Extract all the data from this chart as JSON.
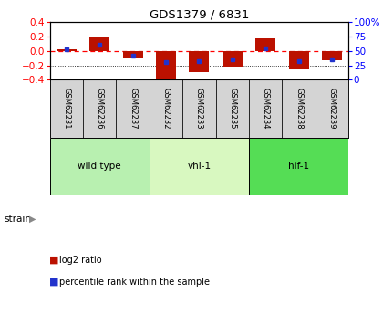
{
  "title": "GDS1379 / 6831",
  "samples": [
    "GSM62231",
    "GSM62236",
    "GSM62237",
    "GSM62232",
    "GSM62233",
    "GSM62235",
    "GSM62234",
    "GSM62238",
    "GSM62239"
  ],
  "log2_ratios": [
    0.02,
    0.2,
    -0.11,
    -0.38,
    -0.3,
    -0.22,
    0.17,
    -0.25,
    -0.13
  ],
  "percentile_ranks": [
    53,
    60,
    42,
    30,
    32,
    35,
    55,
    33,
    36
  ],
  "groups": [
    {
      "label": "wild type",
      "start": 0,
      "end": 3,
      "color": "#b8f0b0"
    },
    {
      "label": "vhl-1",
      "start": 3,
      "end": 6,
      "color": "#d8f8c0"
    },
    {
      "label": "hif-1",
      "start": 6,
      "end": 9,
      "color": "#55dd55"
    }
  ],
  "ylim": [
    -0.4,
    0.4
  ],
  "yticks_left": [
    -0.4,
    -0.2,
    0.0,
    0.2,
    0.4
  ],
  "yticks_right": [
    0,
    25,
    50,
    75,
    100
  ],
  "bar_color": "#bb1100",
  "dot_color": "#2233cc",
  "bg_color": "#ffffff",
  "sample_cell_color": "#d4d4d4",
  "legend_items": [
    "log2 ratio",
    "percentile rank within the sample"
  ]
}
